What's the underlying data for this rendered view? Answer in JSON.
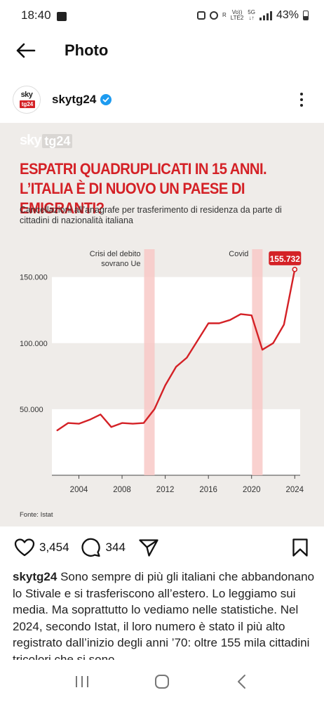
{
  "status": {
    "time": "18:40",
    "net_left": "R",
    "net_volte_top": "Vo))",
    "net_volte_bottom": "LTE2",
    "net_5g_top": "5G",
    "net_5g_bottom": "↓↑",
    "battery": "43%"
  },
  "header": {
    "title": "Photo"
  },
  "post": {
    "username": "skytg24",
    "avatar_top": "sky",
    "avatar_bottom": "tg24",
    "image": {
      "logo_sky": "sky",
      "logo_tg": "tg24",
      "headline_line1": "ESPATRI QUADRUPLICATI IN 15 ANNI.",
      "headline_line2": "L’ITALIA È DI NUOVO UN PAESE DI EMIGRANTI?",
      "subtitle": "Cancellazioni all’anagrafe per trasferimento di residenza da parte di cittadini di nazionalità italiana",
      "source": "Fonte: Istat"
    },
    "likes": "3,454",
    "comments": "344",
    "caption_user": "skytg24",
    "caption_text": "Sono sempre di più gli italiani che abbandonano lo Stivale e si trasferiscono all’estero. Lo leggiamo sui media. Ma soprattutto lo vediamo nelle statistiche. Nel 2024, secondo Istat, il loro numero è stato il più alto registrato dall’inizio degli anni ’70: oltre 155 mila cittadini tricolori che si sono"
  },
  "colors": {
    "brand_red": "#d42126",
    "band_light": "#ffffff",
    "image_bg": "#efece9",
    "highlight_band": "#f8c9c7",
    "verified_blue": "#1d9bf0"
  },
  "icons": {
    "back": "arrow-left-icon",
    "more": "more-vertical-icon",
    "like": "heart-icon",
    "comment": "comment-icon",
    "share": "send-icon",
    "save": "bookmark-icon",
    "nav_recent": "recent-apps-icon",
    "nav_home": "home-icon",
    "nav_back": "chevron-left-icon"
  },
  "chart_data": {
    "type": "line",
    "title": "ESPATRI QUADRUPLICATI IN 15 ANNI. L’ITALIA È DI NUOVO UN PAESE DI EMIGRANTI?",
    "subtitle": "Cancellazioni all’anagrafe per trasferimento di residenza da parte di cittadini di nazionalità italiana",
    "x": [
      2002,
      2003,
      2004,
      2005,
      2006,
      2007,
      2008,
      2009,
      2010,
      2011,
      2012,
      2013,
      2014,
      2015,
      2016,
      2017,
      2018,
      2019,
      2020,
      2021,
      2022,
      2023,
      2024
    ],
    "series": [
      {
        "values": [
          34000,
          39500,
          39000,
          42000,
          46000,
          36500,
          39500,
          39000,
          39500,
          50000,
          68000,
          82000,
          89000,
          102000,
          115000,
          115000,
          117500,
          122000,
          121000,
          95000,
          100000,
          114000,
          155732
        ]
      }
    ],
    "y_ticks": [
      50000,
      100000,
      150000
    ],
    "y_tick_labels": [
      "50.000",
      "100.000",
      "150.000"
    ],
    "x_ticks": [
      2004,
      2008,
      2012,
      2016,
      2020,
      2024
    ],
    "x_tick_labels": [
      "2004",
      "2008",
      "2012",
      "2016",
      "2020",
      "2024"
    ],
    "xlim": [
      2001.5,
      2024.5
    ],
    "ylim": [
      0,
      170000
    ],
    "highlight_periods": [
      {
        "year": 2010.5,
        "label_line1": "Crisi del debito",
        "label_line2": "sovrano Ue"
      },
      {
        "year": 2020.5,
        "label_line1": "Covid",
        "label_line2": ""
      }
    ],
    "data_label": {
      "text": "155.732",
      "year": 2024,
      "value": 155732
    },
    "source": "Fonte: Istat",
    "grid": "alternating horizontal bands",
    "legend": "none"
  }
}
